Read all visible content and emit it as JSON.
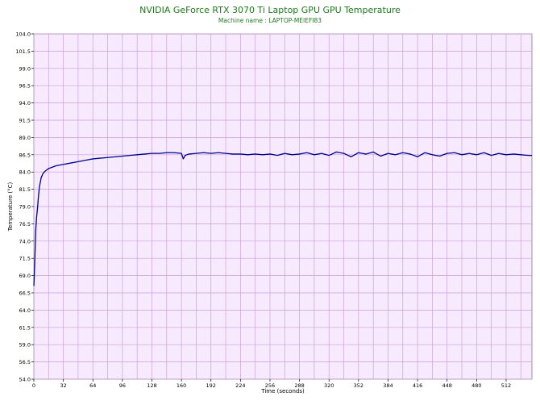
{
  "chart_data": {
    "type": "line",
    "title": "NVIDIA GeForce RTX 3070 Ti Laptop GPU GPU Temperature",
    "subtitle": "Machine name : LAPTOP-MEIEFI83",
    "xlabel": "Time (seconds)",
    "ylabel": "Temperature (°C)",
    "xlim": [
      0,
      540
    ],
    "ylim": [
      54.0,
      104.0
    ],
    "x_ticks": [
      "0",
      "32",
      "64",
      "96",
      "128",
      "160",
      "192",
      "224",
      "256",
      "288",
      "320",
      "352",
      "384",
      "416",
      "448",
      "480",
      "512"
    ],
    "y_ticks": [
      "54.0",
      "56.5",
      "59.0",
      "61.5",
      "64.0",
      "66.5",
      "69.0",
      "71.5",
      "74.0",
      "76.5",
      "79.0",
      "81.5",
      "84.0",
      "86.5",
      "89.0",
      "91.5",
      "94.0",
      "96.5",
      "99.0",
      "101.5",
      "104.0"
    ],
    "grid": true,
    "colors": {
      "plot_background": "#f7eaff",
      "grid": "#c9a0d8",
      "line": "#00008b",
      "title": "#1f7a1f"
    },
    "series": [
      {
        "values_x": [
          0,
          1,
          2,
          3,
          4,
          5,
          6,
          8,
          10,
          12,
          14,
          16,
          18,
          20,
          24,
          28,
          32,
          36,
          40,
          48,
          56,
          64,
          72,
          80,
          88,
          96,
          104,
          112,
          120,
          128,
          136,
          144,
          152,
          160,
          162,
          164,
          168,
          176,
          184,
          192,
          200,
          208,
          216,
          224,
          232,
          240,
          248,
          256,
          264,
          272,
          280,
          288,
          296,
          304,
          312,
          320,
          328,
          336,
          344,
          352,
          360,
          368,
          376,
          384,
          392,
          400,
          408,
          416,
          424,
          432,
          440,
          448,
          456,
          464,
          472,
          480,
          488,
          496,
          504,
          512,
          520,
          528,
          536,
          540
        ],
        "values": [
          67.5,
          71.0,
          75.5,
          77.5,
          78.8,
          80.5,
          81.8,
          83.2,
          83.8,
          84.1,
          84.3,
          84.5,
          84.6,
          84.7,
          84.9,
          85.0,
          85.1,
          85.2,
          85.3,
          85.5,
          85.7,
          85.9,
          86.0,
          86.1,
          86.2,
          86.3,
          86.4,
          86.5,
          86.6,
          86.7,
          86.7,
          86.8,
          86.8,
          86.7,
          85.9,
          86.4,
          86.6,
          86.7,
          86.8,
          86.7,
          86.8,
          86.7,
          86.6,
          86.6,
          86.5,
          86.6,
          86.5,
          86.6,
          86.4,
          86.7,
          86.5,
          86.6,
          86.8,
          86.5,
          86.7,
          86.4,
          86.9,
          86.7,
          86.2,
          86.8,
          86.6,
          86.9,
          86.3,
          86.7,
          86.5,
          86.8,
          86.6,
          86.2,
          86.8,
          86.5,
          86.3,
          86.7,
          86.8,
          86.5,
          86.7,
          86.5,
          86.8,
          86.4,
          86.7,
          86.5,
          86.6,
          86.5,
          86.4,
          86.4
        ]
      }
    ]
  }
}
